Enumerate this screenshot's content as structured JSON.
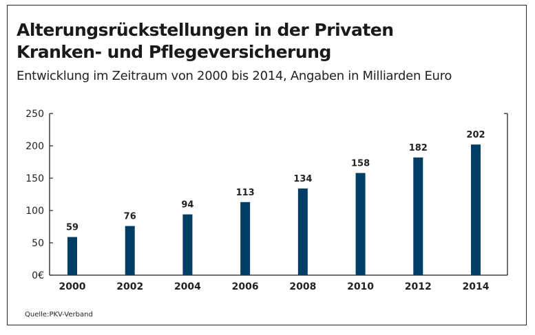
{
  "chart_data": {
    "type": "bar",
    "title": "Alterungsrückstellungen in der Privaten Kranken- und Pflegeversicherung",
    "title_lines": [
      "Alterungsrückstellungen in der Privaten",
      "Kranken- und Pflegeversicherung"
    ],
    "subtitle": "Entwicklung im Zeitraum von 2000 bis 2014, Angaben in Milliarden Euro",
    "categories": [
      "2000",
      "2002",
      "2004",
      "2006",
      "2008",
      "2010",
      "2012",
      "2014"
    ],
    "values": [
      59,
      76,
      94,
      113,
      134,
      158,
      182,
      202
    ],
    "xlabel": "",
    "ylabel": "",
    "ylim": [
      0,
      250
    ],
    "yticks": [
      0,
      50,
      100,
      150,
      200,
      250
    ],
    "ytick_labels": [
      "0€",
      "50",
      "100",
      "150",
      "200",
      "250"
    ],
    "grid": false,
    "legend": "none",
    "bar_color": "#003e66",
    "source": "Quelle:PKV-Verband"
  }
}
